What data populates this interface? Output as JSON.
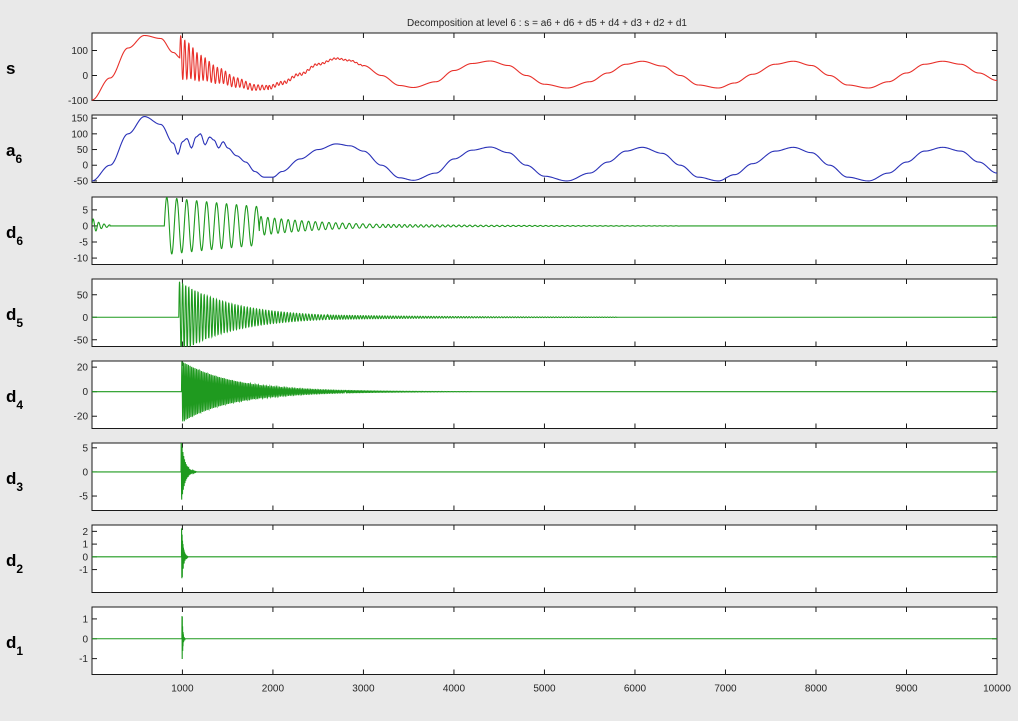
{
  "chart_data": {
    "type": "line",
    "title": "Decomposition at level 6 : s = a6 + d6 + d5 + d4 + d3 + d2 + d1",
    "xlim": [
      1,
      10000
    ],
    "x_ticks": [
      1000,
      2000,
      3000,
      4000,
      5000,
      6000,
      7000,
      8000,
      9000,
      10000
    ],
    "x_tick_labels": [
      "1000",
      "2000",
      "3000",
      "4000",
      "5000",
      "6000",
      "7000",
      "8000",
      "9000",
      "10000"
    ],
    "grid": false,
    "colors": {
      "signal": "#e8302a",
      "approx": "#2a32b8",
      "detail": "#1f9a1f",
      "background": "#e9e9e9"
    },
    "panels": [
      {
        "id": "s",
        "label": "s",
        "sub": "",
        "color": "#e8302a",
        "ylim": [
          -100,
          170
        ],
        "yticks": [
          -100,
          0,
          100
        ],
        "points": [
          [
            0,
            -98
          ],
          [
            200,
            -10
          ],
          [
            400,
            110
          ],
          [
            580,
            160
          ],
          [
            760,
            148
          ],
          [
            900,
            92
          ],
          [
            980,
            70
          ],
          [
            1050,
            60
          ],
          [
            1200,
            30
          ],
          [
            1400,
            0
          ],
          [
            1600,
            -28
          ],
          [
            1800,
            -48
          ],
          [
            1950,
            -48
          ],
          [
            2100,
            -30
          ],
          [
            2300,
            5
          ],
          [
            2500,
            45
          ],
          [
            2700,
            68
          ],
          [
            2850,
            60
          ],
          [
            3000,
            40
          ],
          [
            3200,
            0
          ],
          [
            3400,
            -40
          ],
          [
            3550,
            -48
          ],
          [
            3800,
            -25
          ],
          [
            4000,
            20
          ],
          [
            4200,
            48
          ],
          [
            4400,
            58
          ],
          [
            4600,
            40
          ],
          [
            4800,
            0
          ],
          [
            5000,
            -35
          ],
          [
            5250,
            -50
          ],
          [
            5500,
            -25
          ],
          [
            5700,
            10
          ],
          [
            5900,
            45
          ],
          [
            6080,
            57
          ],
          [
            6300,
            38
          ],
          [
            6500,
            0
          ],
          [
            6700,
            -38
          ],
          [
            6920,
            -50
          ],
          [
            7100,
            -30
          ],
          [
            7300,
            5
          ],
          [
            7550,
            45
          ],
          [
            7750,
            57
          ],
          [
            7950,
            40
          ],
          [
            8150,
            0
          ],
          [
            8350,
            -38
          ],
          [
            8580,
            -50
          ],
          [
            8800,
            -25
          ],
          [
            9000,
            10
          ],
          [
            9200,
            45
          ],
          [
            9400,
            57
          ],
          [
            9600,
            45
          ],
          [
            9800,
            10
          ],
          [
            10000,
            -20
          ]
        ],
        "bursts": [
          {
            "x_start": 970,
            "x_end": 1950,
            "period": 45,
            "amp_start": 90,
            "amp_end": 8
          },
          {
            "x_start": 1950,
            "x_end": 3000,
            "period": 42,
            "amp_start": 8,
            "amp_end": 2
          }
        ]
      },
      {
        "id": "a6",
        "label": "a",
        "sub": "6",
        "color": "#2a32b8",
        "ylim": [
          -55,
          160
        ],
        "yticks": [
          -50,
          0,
          50,
          100,
          150
        ],
        "points": [
          [
            0,
            -50
          ],
          [
            200,
            0
          ],
          [
            400,
            100
          ],
          [
            580,
            155
          ],
          [
            760,
            130
          ],
          [
            900,
            70
          ],
          [
            950,
            35
          ],
          [
            1000,
            75
          ],
          [
            1050,
            85
          ],
          [
            1100,
            55
          ],
          [
            1150,
            90
          ],
          [
            1200,
            100
          ],
          [
            1250,
            65
          ],
          [
            1300,
            90
          ],
          [
            1350,
            80
          ],
          [
            1400,
            55
          ],
          [
            1450,
            75
          ],
          [
            1500,
            55
          ],
          [
            1600,
            30
          ],
          [
            1700,
            10
          ],
          [
            1800,
            -20
          ],
          [
            1900,
            -38
          ],
          [
            2000,
            -38
          ],
          [
            2100,
            -20
          ],
          [
            2300,
            20
          ],
          [
            2500,
            50
          ],
          [
            2700,
            68
          ],
          [
            2850,
            62
          ],
          [
            3000,
            45
          ],
          [
            3200,
            0
          ],
          [
            3400,
            -40
          ],
          [
            3550,
            -48
          ],
          [
            3800,
            -25
          ],
          [
            4000,
            20
          ],
          [
            4200,
            48
          ],
          [
            4400,
            58
          ],
          [
            4600,
            40
          ],
          [
            4800,
            0
          ],
          [
            5000,
            -35
          ],
          [
            5250,
            -50
          ],
          [
            5500,
            -25
          ],
          [
            5700,
            10
          ],
          [
            5900,
            45
          ],
          [
            6080,
            57
          ],
          [
            6300,
            38
          ],
          [
            6500,
            0
          ],
          [
            6700,
            -38
          ],
          [
            6920,
            -50
          ],
          [
            7100,
            -30
          ],
          [
            7300,
            5
          ],
          [
            7550,
            45
          ],
          [
            7750,
            57
          ],
          [
            7950,
            40
          ],
          [
            8150,
            0
          ],
          [
            8350,
            -38
          ],
          [
            8580,
            -50
          ],
          [
            8800,
            -25
          ],
          [
            9000,
            10
          ],
          [
            9200,
            45
          ],
          [
            9400,
            57
          ],
          [
            9600,
            45
          ],
          [
            9800,
            10
          ],
          [
            10000,
            -25
          ]
        ],
        "bursts": []
      },
      {
        "id": "d6",
        "label": "d",
        "sub": "6",
        "color": "#1f9a1f",
        "ylim": [
          -12,
          9
        ],
        "yticks": [
          -10,
          -5,
          0,
          5
        ],
        "points": [
          [
            0,
            0
          ],
          [
            10000,
            0
          ]
        ],
        "bursts": [
          {
            "x_start": 0,
            "x_end": 200,
            "period": 60,
            "amp_start": 2.5,
            "amp_end": 0.3
          },
          {
            "x_start": 800,
            "x_end": 1850,
            "period": 110,
            "amp_start": 9,
            "amp_end": 6
          },
          {
            "x_start": 1850,
            "x_end": 3200,
            "period": 75,
            "amp_start": 3,
            "amp_end": 0.5
          },
          {
            "x_start": 3200,
            "x_end": 6500,
            "period": 60,
            "amp_start": 0.5,
            "amp_end": 0.05
          }
        ]
      },
      {
        "id": "d5",
        "label": "d",
        "sub": "5",
        "color": "#1f9a1f",
        "ylim": [
          -65,
          85
        ],
        "yticks": [
          -50,
          0,
          50
        ],
        "points": [
          [
            0,
            0
          ],
          [
            10000,
            0
          ]
        ],
        "bursts": [
          {
            "x_start": 960,
            "x_end": 2600,
            "period": 34,
            "amp_start": 80,
            "amp_end": 5
          },
          {
            "x_start": 2600,
            "x_end": 5800,
            "period": 30,
            "amp_start": 5,
            "amp_end": 0.4
          }
        ]
      },
      {
        "id": "d4",
        "label": "d",
        "sub": "4",
        "color": "#1f9a1f",
        "ylim": [
          -30,
          25
        ],
        "yticks": [
          -20,
          0,
          20
        ],
        "points": [
          [
            0,
            0
          ],
          [
            10000,
            0
          ]
        ],
        "bursts": [
          {
            "x_start": 990,
            "x_end": 2800,
            "period": 18,
            "amp_start": 25,
            "amp_end": 1
          },
          {
            "x_start": 2800,
            "x_end": 4200,
            "period": 16,
            "amp_start": 1,
            "amp_end": 0.1
          }
        ]
      },
      {
        "id": "d3",
        "label": "d",
        "sub": "3",
        "color": "#1f9a1f",
        "ylim": [
          -8,
          6
        ],
        "yticks": [
          -5,
          0,
          5
        ],
        "points": [
          [
            0,
            0
          ],
          [
            10000,
            0
          ]
        ],
        "bursts": [
          {
            "x_start": 985,
            "x_end": 1150,
            "period": 9,
            "amp_start": 7,
            "amp_end": 0.1
          }
        ]
      },
      {
        "id": "d2",
        "label": "d",
        "sub": "2",
        "color": "#1f9a1f",
        "ylim": [
          -2.8,
          2.5
        ],
        "yticks": [
          -1,
          0,
          1,
          2
        ],
        "points": [
          [
            0,
            0
          ],
          [
            10000,
            0
          ]
        ],
        "bursts": [
          {
            "x_start": 990,
            "x_end": 1060,
            "period": 5,
            "amp_start": 2.6,
            "amp_end": 0.05
          }
        ]
      },
      {
        "id": "d1",
        "label": "d",
        "sub": "1",
        "color": "#1f9a1f",
        "ylim": [
          -1.8,
          1.6
        ],
        "yticks": [
          -1,
          0,
          1
        ],
        "points": [
          [
            0,
            0
          ],
          [
            10000,
            0
          ]
        ],
        "bursts": [
          {
            "x_start": 995,
            "x_end": 1030,
            "period": 3,
            "amp_start": 1.8,
            "amp_end": 0.02
          }
        ]
      }
    ]
  }
}
